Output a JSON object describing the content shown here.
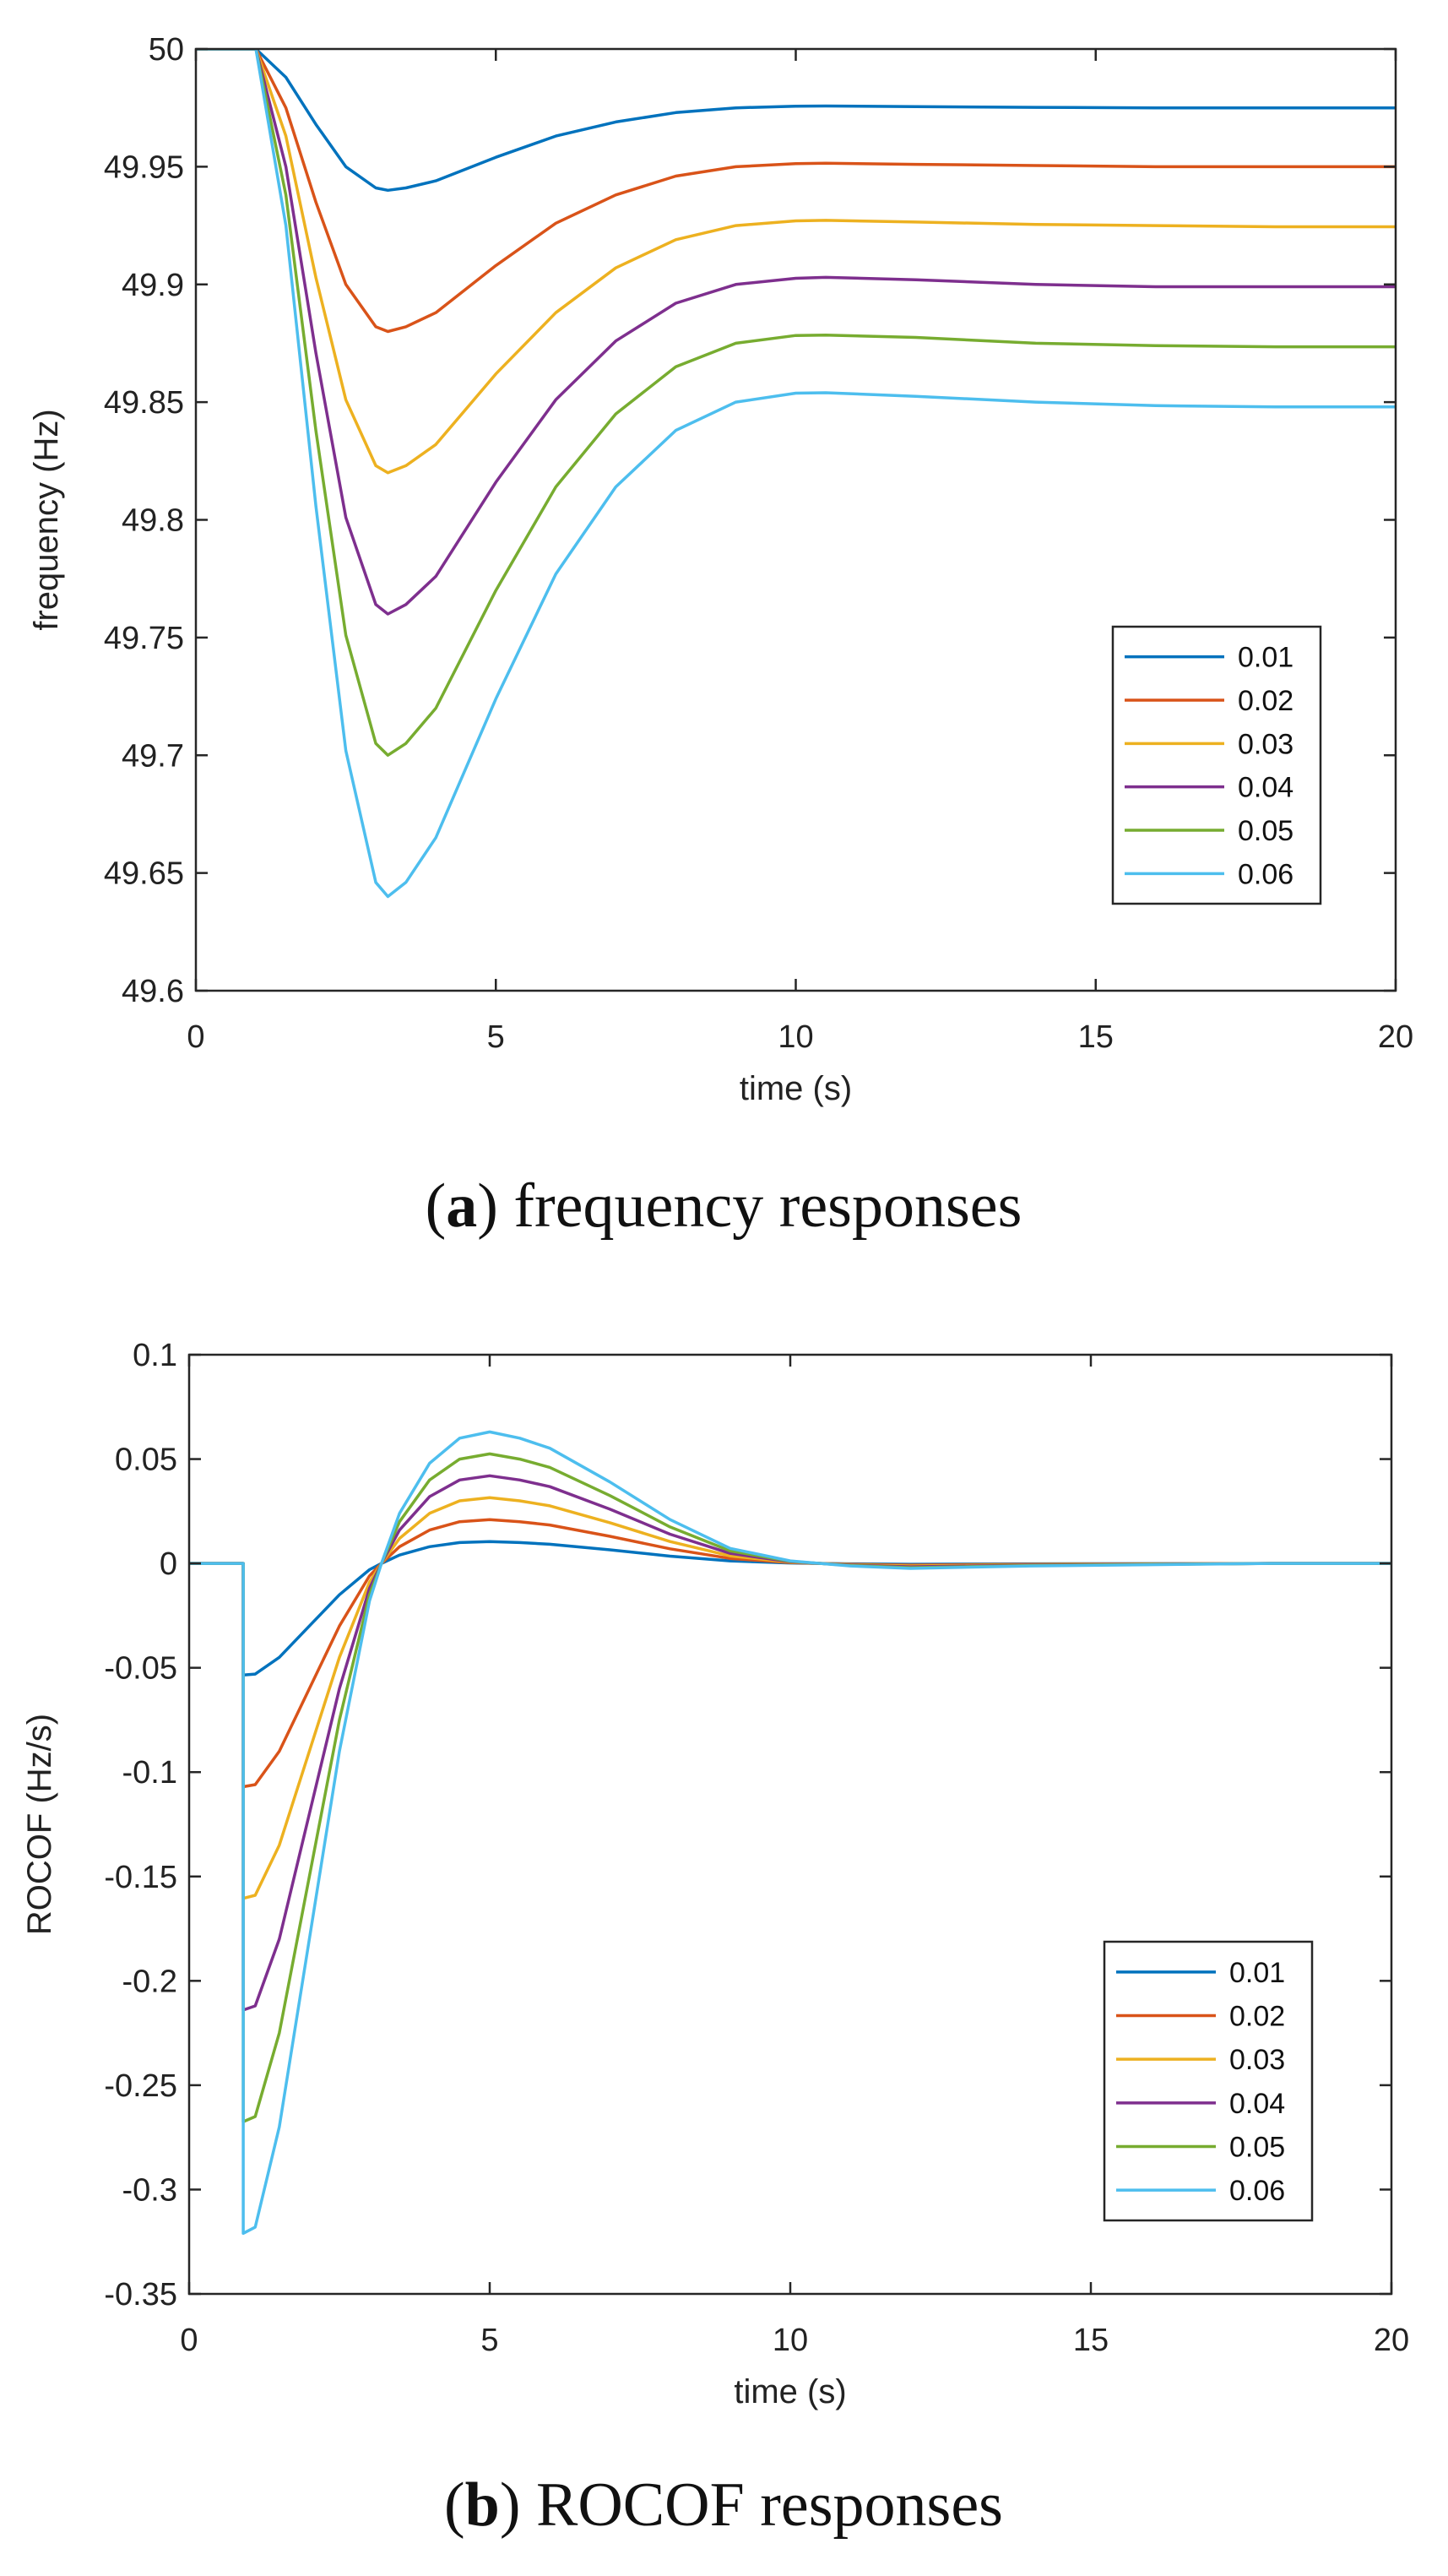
{
  "figure": {
    "caption_a": {
      "letter": "a",
      "text": " frequency responses"
    },
    "caption_b": {
      "letter": "b",
      "text": " ROCOF responses"
    }
  },
  "chart_data": [
    {
      "id": "a",
      "type": "line",
      "title": "",
      "xlabel": "time (s)",
      "ylabel": "frequency (Hz)",
      "xlim": [
        0,
        20
      ],
      "ylim": [
        49.6,
        50
      ],
      "xticks": [
        0,
        5,
        10,
        15,
        20
      ],
      "yticks": [
        49.6,
        49.65,
        49.7,
        49.75,
        49.8,
        49.85,
        49.9,
        49.95,
        50
      ],
      "ytick_labels": [
        "49.6",
        "49.65",
        "49.7",
        "49.75",
        "49.8",
        "49.85",
        "49.9",
        "49.95",
        "50"
      ],
      "legend_position": "lower-right",
      "grid": false,
      "x": [
        0,
        1,
        1.5,
        2,
        2.5,
        3,
        3.2,
        3.5,
        4,
        5,
        6,
        7,
        8,
        9,
        10,
        10.5,
        12,
        14,
        16,
        18,
        20
      ],
      "series": [
        {
          "name": "0.01",
          "color": "#0072BD",
          "values": [
            50,
            50,
            49.988,
            49.968,
            49.95,
            49.941,
            49.94,
            49.941,
            49.944,
            49.954,
            49.963,
            49.969,
            49.973,
            49.975,
            49.9757,
            49.9758,
            49.9755,
            49.9752,
            49.975,
            49.975,
            49.975
          ]
        },
        {
          "name": "0.02",
          "color": "#D95319",
          "values": [
            50,
            50,
            49.975,
            49.935,
            49.9,
            49.882,
            49.88,
            49.882,
            49.888,
            49.908,
            49.926,
            49.938,
            49.946,
            49.95,
            49.9513,
            49.9515,
            49.951,
            49.9505,
            49.95,
            49.95,
            49.95
          ]
        },
        {
          "name": "0.03",
          "color": "#EDB120",
          "values": [
            50,
            50,
            49.963,
            49.903,
            49.851,
            49.823,
            49.82,
            49.823,
            49.832,
            49.862,
            49.888,
            49.907,
            49.919,
            49.925,
            49.927,
            49.9272,
            49.9265,
            49.9255,
            49.925,
            49.9245,
            49.9245
          ]
        },
        {
          "name": "0.04",
          "color": "#7E2F8E",
          "values": [
            50,
            50,
            49.95,
            49.871,
            49.801,
            49.764,
            49.76,
            49.764,
            49.776,
            49.816,
            49.851,
            49.876,
            49.892,
            49.9,
            49.9026,
            49.903,
            49.902,
            49.9,
            49.899,
            49.899,
            49.899
          ]
        },
        {
          "name": "0.05",
          "color": "#77AC30",
          "values": [
            50,
            50,
            49.938,
            49.838,
            49.751,
            49.705,
            49.7,
            49.705,
            49.72,
            49.77,
            49.814,
            49.845,
            49.865,
            49.875,
            49.8783,
            49.8785,
            49.8775,
            49.875,
            49.874,
            49.8735,
            49.8735
          ]
        },
        {
          "name": "0.06",
          "color": "#4DBEEE",
          "values": [
            50,
            50,
            49.925,
            49.806,
            49.702,
            49.646,
            49.64,
            49.646,
            49.665,
            49.724,
            49.777,
            49.814,
            49.838,
            49.85,
            49.8538,
            49.854,
            49.8525,
            49.85,
            49.8485,
            49.848,
            49.848
          ]
        }
      ]
    },
    {
      "id": "b",
      "type": "line",
      "title": "",
      "xlabel": "time (s)",
      "ylabel": "ROCOF (Hz/s)",
      "xlim": [
        0,
        20
      ],
      "ylim": [
        -0.35,
        0.1
      ],
      "xticks": [
        0,
        5,
        10,
        15,
        20
      ],
      "yticks": [
        -0.35,
        -0.3,
        -0.25,
        -0.2,
        -0.15,
        -0.1,
        -0.05,
        0,
        0.05,
        0.1
      ],
      "ytick_labels": [
        "-0.35",
        "-0.3",
        "-0.25",
        "-0.2",
        "-0.15",
        "-0.1",
        "-0.05",
        "0",
        "0.05",
        "0.1"
      ],
      "legend_position": "lower-right",
      "grid": false,
      "x": [
        0,
        0.9,
        0.9,
        1.1,
        1.5,
        2,
        2.5,
        3,
        3.2,
        3.5,
        4,
        4.5,
        5,
        5.5,
        6,
        7,
        8,
        9,
        10,
        10.5,
        11,
        12,
        14,
        16,
        18,
        20
      ],
      "series": [
        {
          "name": "0.01",
          "color": "#0072BD",
          "values": [
            0,
            0,
            -0.0535,
            -0.053,
            -0.045,
            -0.03,
            -0.015,
            -0.003,
            0,
            0.004,
            0.008,
            0.01,
            0.0105,
            0.01,
            0.0092,
            0.0065,
            0.0035,
            0.0012,
            0.0002,
            0,
            -0.0002,
            -0.0004,
            -0.0002,
            -0.0001,
            0,
            0
          ]
        },
        {
          "name": "0.02",
          "color": "#D95319",
          "values": [
            0,
            0,
            -0.107,
            -0.106,
            -0.09,
            -0.06,
            -0.03,
            -0.006,
            0,
            0.008,
            0.016,
            0.02,
            0.021,
            0.02,
            0.0184,
            0.013,
            0.007,
            0.0024,
            0.0004,
            0,
            -0.0004,
            -0.0008,
            -0.0004,
            -0.0002,
            0,
            0
          ]
        },
        {
          "name": "0.03",
          "color": "#EDB120",
          "values": [
            0,
            0,
            -0.1605,
            -0.159,
            -0.135,
            -0.09,
            -0.045,
            -0.009,
            0,
            0.012,
            0.024,
            0.03,
            0.0315,
            0.03,
            0.0276,
            0.0195,
            0.0105,
            0.0036,
            0.0006,
            0,
            -0.0006,
            -0.0012,
            -0.0006,
            -0.0003,
            0,
            0
          ]
        },
        {
          "name": "0.04",
          "color": "#7E2F8E",
          "values": [
            0,
            0,
            -0.214,
            -0.212,
            -0.18,
            -0.12,
            -0.06,
            -0.012,
            0,
            0.016,
            0.032,
            0.04,
            0.042,
            0.04,
            0.0368,
            0.026,
            0.014,
            0.0048,
            0.0008,
            0,
            -0.0008,
            -0.0016,
            -0.0008,
            -0.0004,
            0,
            0
          ]
        },
        {
          "name": "0.05",
          "color": "#77AC30",
          "values": [
            0,
            0,
            -0.2675,
            -0.265,
            -0.225,
            -0.15,
            -0.075,
            -0.015,
            0,
            0.02,
            0.04,
            0.05,
            0.0525,
            0.05,
            0.046,
            0.0325,
            0.0175,
            0.006,
            0.001,
            0,
            -0.001,
            -0.002,
            -0.001,
            -0.0005,
            0,
            0
          ]
        },
        {
          "name": "0.06",
          "color": "#4DBEEE",
          "values": [
            0,
            0,
            -0.321,
            -0.318,
            -0.27,
            -0.18,
            -0.09,
            -0.018,
            0,
            0.024,
            0.048,
            0.06,
            0.063,
            0.06,
            0.0552,
            0.039,
            0.021,
            0.0072,
            0.0012,
            0,
            -0.0012,
            -0.0024,
            -0.0012,
            -0.0006,
            0,
            0
          ]
        }
      ]
    }
  ]
}
